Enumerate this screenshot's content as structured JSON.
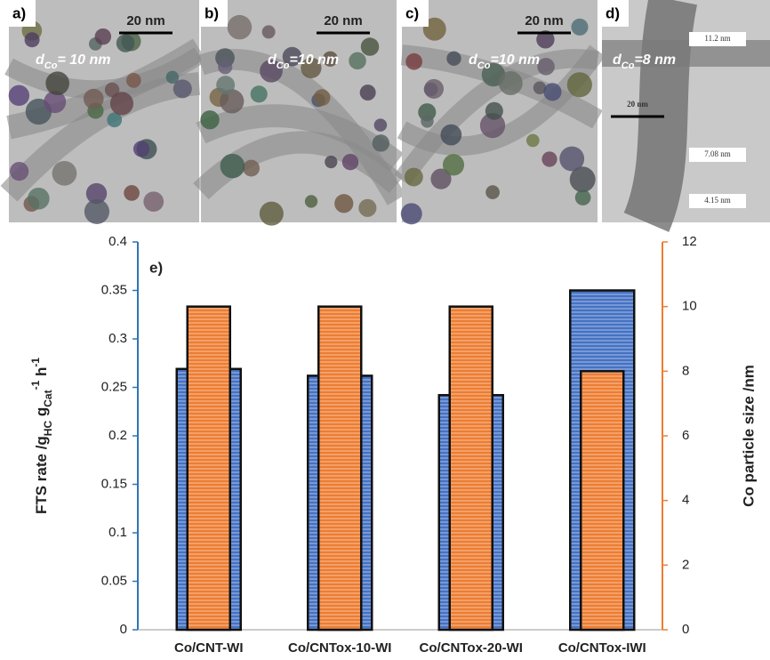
{
  "panels": [
    {
      "label": "a)",
      "scale": "20 nm",
      "symbol": "d",
      "subscript": "Co",
      "size": "= 10 nm"
    },
    {
      "label": "b)",
      "scale": "20 nm",
      "symbol": "d",
      "subscript": "Co",
      "size": "=10 nm"
    },
    {
      "label": "c)",
      "scale": "20 nm",
      "symbol": "d",
      "subscript": "Co",
      "size": "=10 nm"
    },
    {
      "label": "d)",
      "scale": "20 nm",
      "symbol": "d",
      "subscript": "Co",
      "size": "=8 nm",
      "measurements": [
        "11.2 nm",
        "7.08 nm",
        "4.15 nm"
      ]
    }
  ],
  "chart_data": {
    "type": "bar",
    "annotation": "e)",
    "y_label": [
      "FTS rate /g",
      "HC",
      " g",
      "Cat",
      "-1",
      " h",
      "-1"
    ],
    "y2_label": "Co particle size /nm",
    "categories": [
      "Co/CNT-WI",
      "Co/CNTox-10-WI",
      "Co/CNTox-20-WI",
      "Co/CNTox-IWI"
    ],
    "series": [
      {
        "color": "#4472c4",
        "values": [
          0.269,
          0.262,
          0.242,
          0.35
        ]
      },
      {
        "color": "#ed7d31",
        "axis": "y2",
        "values": [
          10,
          10,
          10,
          8
        ]
      }
    ],
    "ylim": [
      0,
      0.4
    ],
    "yticks": [
      0,
      0.05,
      0.1,
      0.15,
      0.2,
      0.25,
      0.3,
      0.35,
      0.4
    ],
    "y2lim": [
      0,
      12
    ],
    "y2ticks": [
      0,
      2,
      4,
      6,
      8,
      10,
      12
    ]
  }
}
